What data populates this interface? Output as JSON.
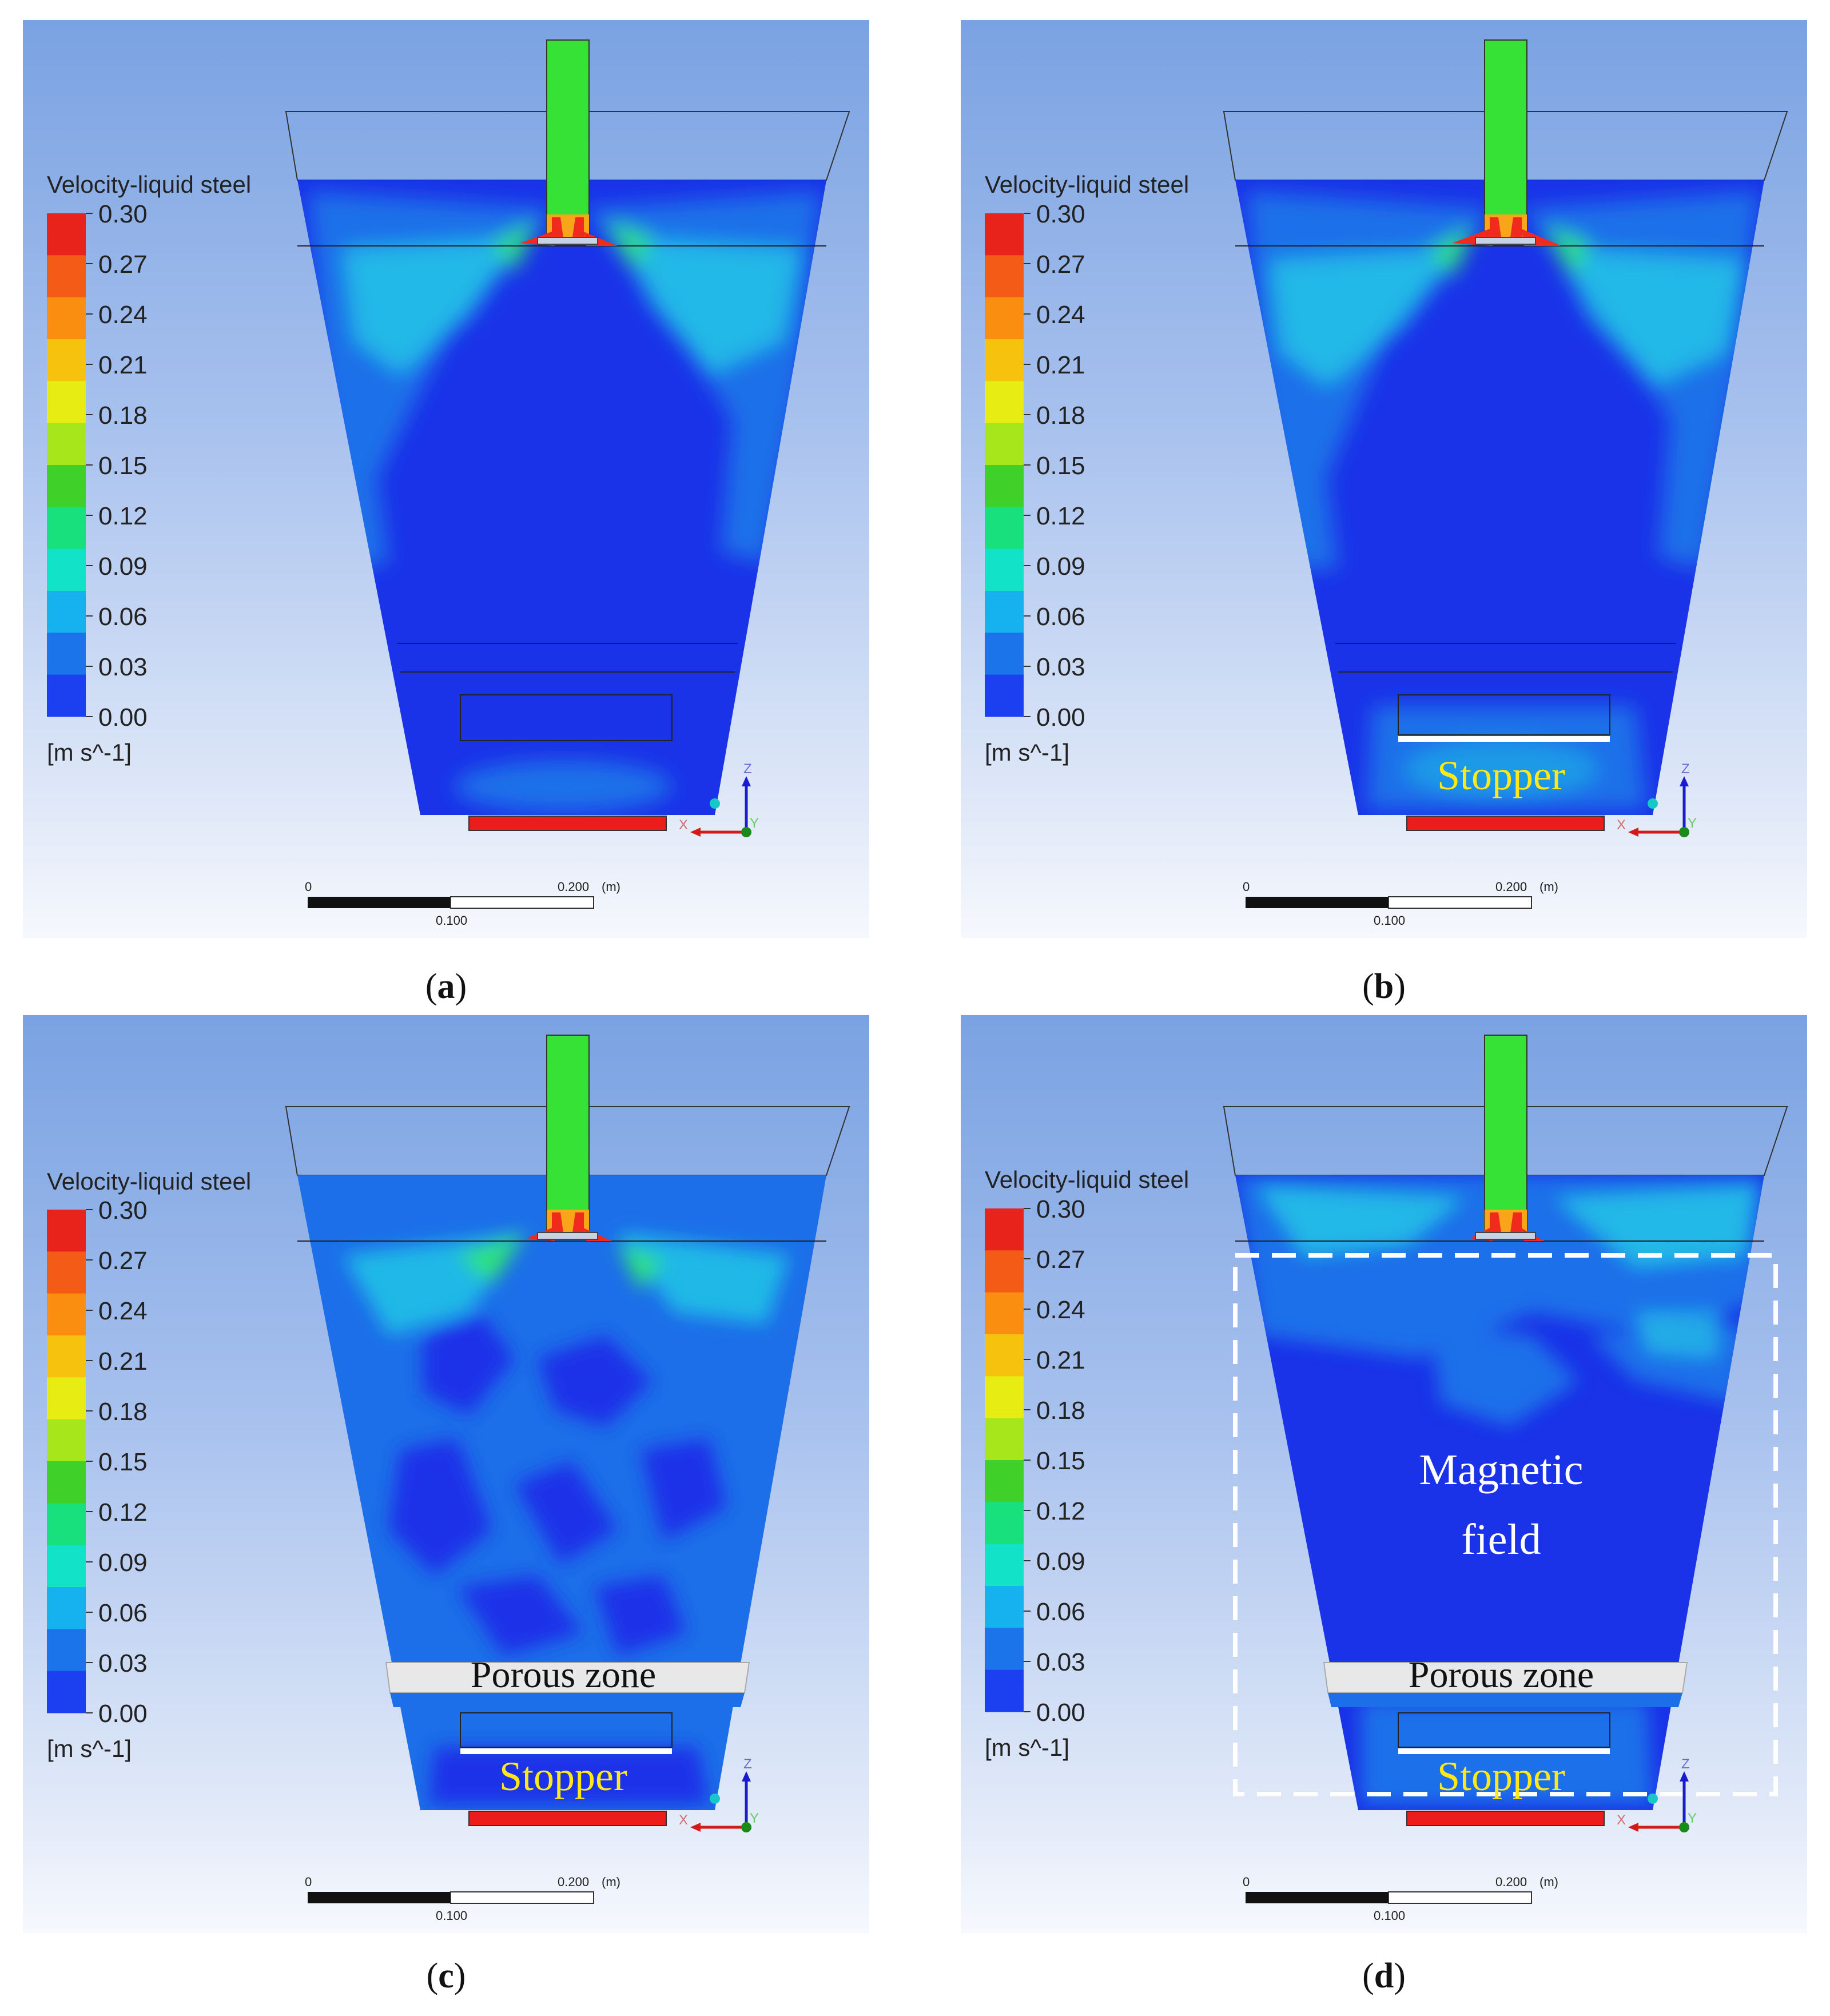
{
  "colorbar": {
    "title": "Velocity-liquid steel",
    "ticks": [
      "0.30",
      "0.27",
      "0.24",
      "0.21",
      "0.18",
      "0.15",
      "0.12",
      "0.09",
      "0.06",
      "0.03",
      "0.00"
    ],
    "unit": "[m s^-1]",
    "colors": [
      "#e8231b",
      "#f45b16",
      "#f98e10",
      "#f6c20d",
      "#e7ec12",
      "#a8e61c",
      "#3fd02a",
      "#17e07c",
      "#12e3c8",
      "#15b2ef",
      "#1b74ea",
      "#1c3ff0"
    ]
  },
  "scale_bar": {
    "start": "0",
    "end": "0.200",
    "unit": "(m)",
    "mid": "0.100"
  },
  "axes": {
    "x": "X",
    "y": "Y",
    "z": "Z"
  },
  "labels": {
    "stopper": "Stopper",
    "porous_zone": "Porous zone",
    "magnetic_1": "Magnetic",
    "magnetic_2": "field"
  },
  "panels": [
    {
      "id": "a",
      "caption_open": "(",
      "caption_letter": "a",
      "caption_close": ")"
    },
    {
      "id": "b",
      "caption_open": "(",
      "caption_letter": "b",
      "caption_close": ")"
    },
    {
      "id": "c",
      "caption_open": "(",
      "caption_letter": "c",
      "caption_close": ")"
    },
    {
      "id": "d",
      "caption_open": "(",
      "caption_letter": "d",
      "caption_close": ")"
    }
  ],
  "palette": {
    "bulk": "#1a33e8",
    "mid": "#1d6fe9",
    "cyan": "#22c6e6",
    "green": "#2ee27a",
    "inlet": "#35e235",
    "hot": "#f02a1c",
    "outlet": "#ea1c1c"
  }
}
